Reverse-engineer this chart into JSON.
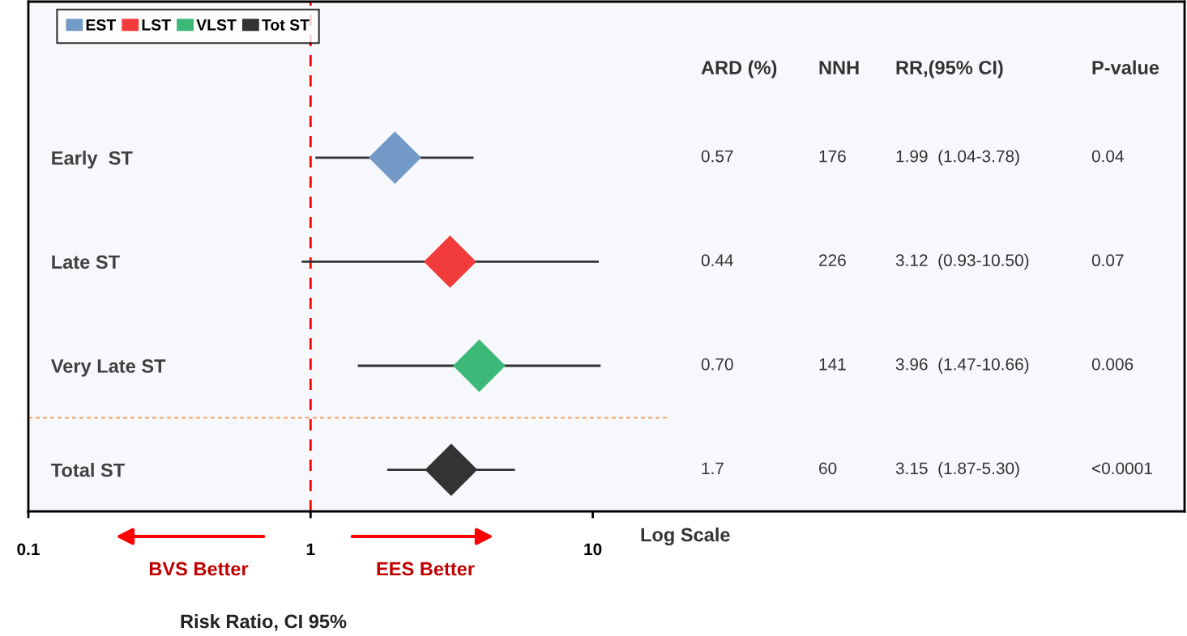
{
  "chart_data": {
    "type": "scatter",
    "orientation": "horizontal",
    "xlabel": "Risk Ratio, CI 95%",
    "categories": [
      "Early  ST",
      "Late ST",
      "Very Late ST",
      "Total ST"
    ],
    "series": [
      {
        "name": "EST",
        "color": "#7399c6",
        "values": [
          1.99,
          null,
          null,
          null
        ],
        "errors": [
          [
            1.04,
            3.78
          ],
          null,
          null,
          null
        ]
      },
      {
        "name": "LST",
        "color": "#f23c3c",
        "values": [
          null,
          3.12,
          null,
          null
        ],
        "errors": [
          null,
          [
            0.93,
            10.5
          ],
          null,
          null
        ]
      },
      {
        "name": "VLST",
        "color": "#3cb878",
        "values": [
          null,
          null,
          3.96,
          null
        ],
        "errors": [
          null,
          null,
          [
            1.47,
            10.66
          ],
          null
        ]
      },
      {
        "name": "Tot ST",
        "color": "#333333",
        "values": [
          null,
          null,
          null,
          3.15
        ],
        "errors": [
          null,
          null,
          null,
          [
            1.87,
            5.3
          ]
        ]
      }
    ],
    "log": "x",
    "xlim": [
      0.1,
      1250
    ],
    "xticks": [
      0.1,
      1,
      10
    ],
    "marker": "diamond",
    "legend": "top left",
    "grid": false,
    "ref_lines": [
      {
        "axis": "x",
        "value": 1,
        "color": "#ff0000",
        "line_style": "dashed"
      }
    ],
    "annotations": [
      "ARD (%)",
      "NNH",
      "RR,(95% CI)",
      "P-value",
      "0.57",
      "176",
      "1.99  (1.04-3.78)",
      "0.04",
      "0.44",
      "226",
      "3.12  (0.93-10.50)",
      "0.07",
      "0.70",
      "141",
      "3.96  (1.47-10.66)",
      "0.006",
      "1.7",
      "60",
      "3.15  (1.87-5.30)",
      "<0.0001",
      "BVS Better",
      "EES Better",
      "Log Scale"
    ]
  }
}
